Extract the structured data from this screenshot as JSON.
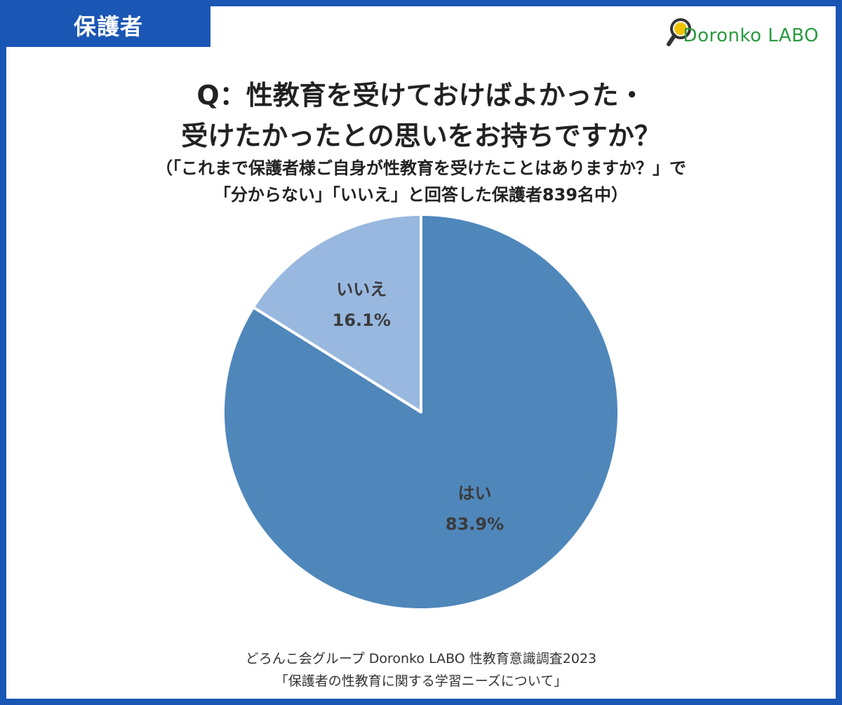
{
  "badge": {
    "label": "保護者"
  },
  "logo": {
    "text": "Doronko LABO",
    "icon": "magnifier-icon",
    "color": "#2a9a3e"
  },
  "chart_data": {
    "type": "pie",
    "title_lines": [
      "Q：性教育を受けておけばよかった・",
      "受けたかったとの思いをお持ちですか？"
    ],
    "subtitle_lines": [
      "（「これまで保護者様ご自身が性教育を受けたことはありますか？」で",
      "「分からない」「いいえ」と回答した保護者839名中）"
    ],
    "slices": [
      {
        "label": "はい",
        "value": 83.9,
        "value_label": "83.9%",
        "color": "#4f87bb"
      },
      {
        "label": "いいえ",
        "value": 16.1,
        "value_label": "16.1%",
        "color": "#98b8df"
      }
    ]
  },
  "source": {
    "lines": [
      "どろんこ会グループ Doronko LABO 性教育意識調査2023",
      "「保護者の性教育に関する学習ニーズについて」"
    ]
  }
}
